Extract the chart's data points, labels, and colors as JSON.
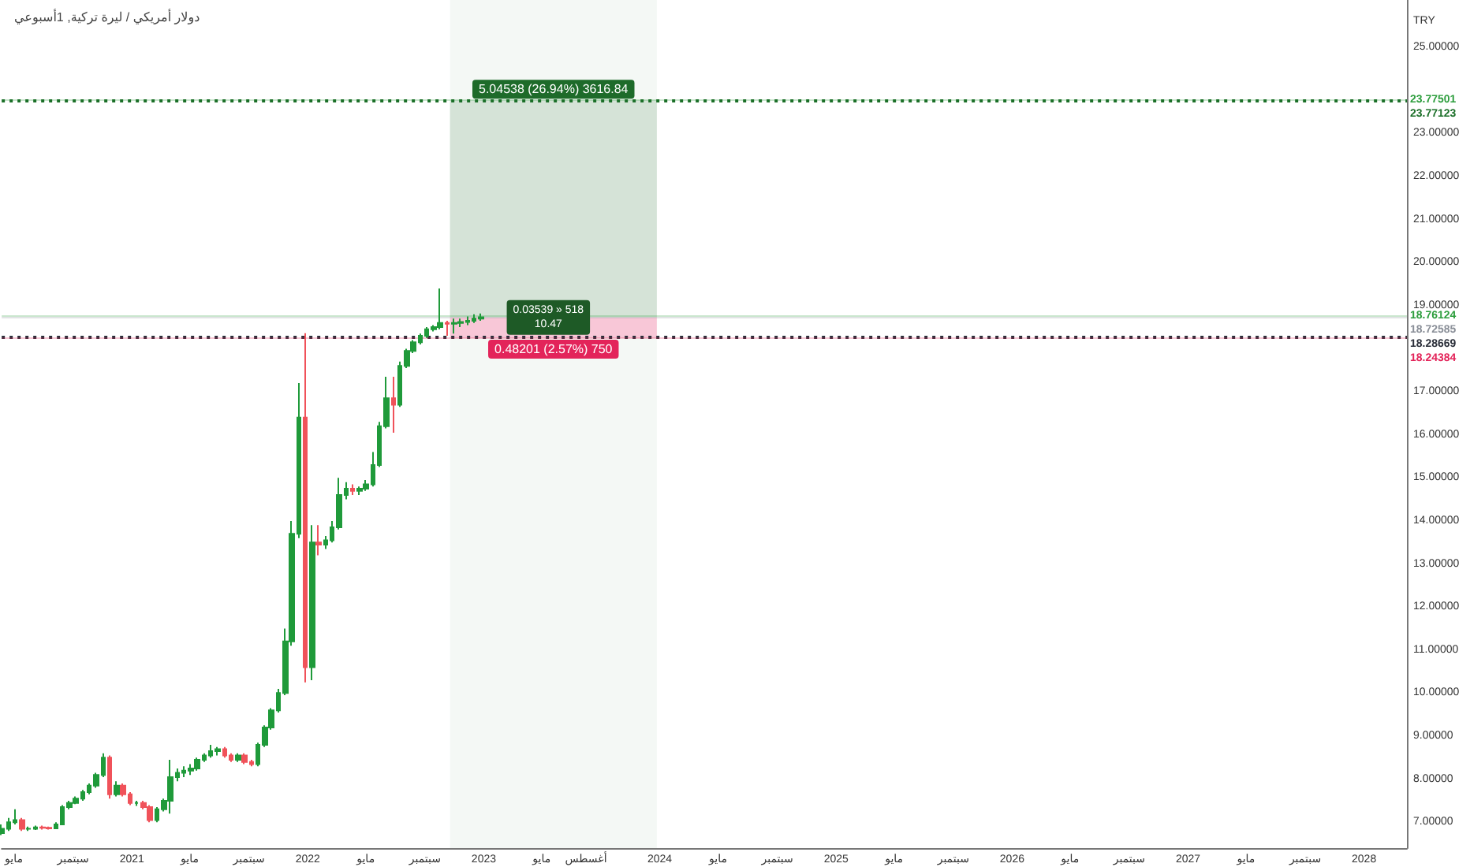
{
  "chart_data": {
    "type": "candlestick",
    "title": "دولار أمريكي / ليرة تركية, 1أسبوعي",
    "ylabel": "TRY",
    "x": [
      "2020-04-06",
      "2020-04-20",
      "2020-05-04",
      "2020-05-18",
      "2020-06-01",
      "2020-06-15",
      "2020-06-29",
      "2020-07-13",
      "2020-07-27",
      "2020-08-10",
      "2020-08-24",
      "2020-09-07",
      "2020-09-21",
      "2020-10-05",
      "2020-10-19",
      "2020-11-02",
      "2020-11-16",
      "2020-11-30",
      "2020-12-14",
      "2020-12-28",
      "2021-01-11",
      "2021-01-25",
      "2021-02-08",
      "2021-02-22",
      "2021-03-08",
      "2021-03-22",
      "2021-04-05",
      "2021-04-19",
      "2021-05-03",
      "2021-05-17",
      "2021-05-31",
      "2021-06-14",
      "2021-06-28",
      "2021-07-12",
      "2021-07-26",
      "2021-08-09",
      "2021-08-23",
      "2021-09-06",
      "2021-09-20",
      "2021-10-04",
      "2021-10-18",
      "2021-11-01",
      "2021-11-15",
      "2021-11-29",
      "2021-12-13",
      "2021-12-27",
      "2022-01-10",
      "2022-01-24",
      "2022-02-07",
      "2022-02-21",
      "2022-03-07",
      "2022-03-21",
      "2022-04-04",
      "2022-04-18",
      "2022-05-02",
      "2022-05-16",
      "2022-05-30",
      "2022-06-13",
      "2022-06-27",
      "2022-07-11",
      "2022-07-25",
      "2022-08-08",
      "2022-08-22",
      "2022-09-05",
      "2022-09-19",
      "2022-10-03",
      "2022-10-17",
      "2022-10-31",
      "2022-11-14",
      "2022-11-28",
      "2022-12-12",
      "2022-12-26"
    ],
    "ohlc": [
      [
        6.75,
        6.95,
        6.7,
        6.85
      ],
      [
        6.85,
        7.1,
        6.8,
        7.0
      ],
      [
        7.0,
        7.3,
        6.95,
        7.05
      ],
      [
        7.05,
        7.1,
        6.8,
        6.85
      ],
      [
        6.85,
        6.9,
        6.8,
        6.85
      ],
      [
        6.85,
        6.92,
        6.82,
        6.88
      ],
      [
        6.88,
        6.92,
        6.83,
        6.87
      ],
      [
        6.87,
        6.9,
        6.83,
        6.86
      ],
      [
        6.86,
        7.0,
        6.84,
        6.95
      ],
      [
        6.95,
        7.4,
        6.93,
        7.35
      ],
      [
        7.35,
        7.5,
        7.3,
        7.45
      ],
      [
        7.45,
        7.6,
        7.42,
        7.55
      ],
      [
        7.55,
        7.75,
        7.5,
        7.7
      ],
      [
        7.7,
        7.9,
        7.65,
        7.85
      ],
      [
        7.85,
        8.15,
        7.8,
        8.1
      ],
      [
        8.1,
        8.6,
        8.05,
        8.5
      ],
      [
        8.5,
        8.55,
        7.55,
        7.65
      ],
      [
        7.65,
        7.95,
        7.6,
        7.85
      ],
      [
        7.85,
        7.9,
        7.6,
        7.65
      ],
      [
        7.65,
        7.7,
        7.4,
        7.45
      ],
      [
        7.45,
        7.5,
        7.38,
        7.45
      ],
      [
        7.45,
        7.5,
        7.3,
        7.35
      ],
      [
        7.35,
        7.4,
        7.0,
        7.05
      ],
      [
        7.05,
        7.35,
        7.0,
        7.3
      ],
      [
        7.3,
        7.55,
        7.25,
        7.5
      ],
      [
        7.5,
        8.45,
        7.2,
        8.05
      ],
      [
        8.05,
        8.25,
        7.95,
        8.15
      ],
      [
        8.15,
        8.3,
        8.05,
        8.2
      ],
      [
        8.2,
        8.35,
        8.1,
        8.25
      ],
      [
        8.25,
        8.5,
        8.2,
        8.45
      ],
      [
        8.45,
        8.6,
        8.4,
        8.55
      ],
      [
        8.55,
        8.8,
        8.5,
        8.65
      ],
      [
        8.65,
        8.75,
        8.55,
        8.7
      ],
      [
        8.7,
        8.75,
        8.5,
        8.55
      ],
      [
        8.55,
        8.6,
        8.4,
        8.45
      ],
      [
        8.45,
        8.6,
        8.4,
        8.55
      ],
      [
        8.55,
        8.6,
        8.35,
        8.4
      ],
      [
        8.4,
        8.45,
        8.3,
        8.35
      ],
      [
        8.35,
        8.85,
        8.3,
        8.8
      ],
      [
        8.8,
        9.25,
        8.75,
        9.2
      ],
      [
        9.2,
        9.65,
        9.15,
        9.6
      ],
      [
        9.6,
        10.1,
        9.55,
        10.0
      ],
      [
        10.0,
        11.5,
        9.95,
        11.2
      ],
      [
        11.2,
        14.0,
        11.1,
        13.7
      ],
      [
        13.7,
        17.2,
        13.6,
        16.4
      ],
      [
        16.4,
        18.36,
        10.25,
        10.6
      ],
      [
        10.6,
        13.9,
        10.3,
        13.5
      ],
      [
        13.5,
        13.9,
        13.2,
        13.45
      ],
      [
        13.45,
        13.65,
        13.35,
        13.55
      ],
      [
        13.55,
        14.0,
        13.5,
        13.85
      ],
      [
        13.85,
        15.0,
        13.8,
        14.6
      ],
      [
        14.6,
        14.9,
        14.5,
        14.75
      ],
      [
        14.75,
        14.85,
        14.6,
        14.7
      ],
      [
        14.7,
        14.8,
        14.6,
        14.75
      ],
      [
        14.75,
        14.95,
        14.7,
        14.85
      ],
      [
        14.85,
        15.6,
        14.8,
        15.3
      ],
      [
        15.3,
        16.3,
        15.25,
        16.2
      ],
      [
        16.2,
        17.35,
        16.15,
        16.85
      ],
      [
        16.85,
        17.35,
        16.05,
        16.7
      ],
      [
        16.7,
        17.7,
        16.65,
        17.6
      ],
      [
        17.6,
        18.0,
        17.55,
        17.95
      ],
      [
        17.95,
        18.2,
        17.9,
        18.15
      ],
      [
        18.15,
        18.35,
        18.1,
        18.3
      ],
      [
        18.3,
        18.5,
        18.25,
        18.45
      ],
      [
        18.45,
        18.55,
        18.4,
        18.5
      ],
      [
        18.5,
        19.4,
        18.45,
        18.6
      ],
      [
        18.6,
        18.65,
        18.3,
        18.58
      ],
      [
        18.58,
        18.7,
        18.35,
        18.6
      ],
      [
        18.6,
        18.7,
        18.5,
        18.62
      ],
      [
        18.62,
        18.75,
        18.55,
        18.65
      ],
      [
        18.65,
        18.8,
        18.6,
        18.7
      ],
      [
        18.7,
        18.82,
        18.65,
        18.73
      ]
    ],
    "xlim": [
      "2020-04-06",
      "2028-03-30"
    ],
    "xticks": [
      {
        "value": "2020-05-01",
        "label": "مايو"
      },
      {
        "value": "2020-09-01",
        "label": "سبتمبر"
      },
      {
        "value": "2021-01-01",
        "label": "2021"
      },
      {
        "value": "2021-05-01",
        "label": "مايو"
      },
      {
        "value": "2021-09-01",
        "label": "سبتمبر"
      },
      {
        "value": "2022-01-01",
        "label": "2022"
      },
      {
        "value": "2022-05-01",
        "label": "مايو"
      },
      {
        "value": "2022-09-01",
        "label": "سبتمبر"
      },
      {
        "value": "2023-01-01",
        "label": "2023"
      },
      {
        "value": "2023-05-01",
        "label": "مايو"
      },
      {
        "value": "2023-08-01",
        "label": "أغسطس"
      },
      {
        "value": "2024-01-01",
        "label": "2024"
      },
      {
        "value": "2024-05-01",
        "label": "مايو"
      },
      {
        "value": "2024-09-01",
        "label": "سبتمبر"
      },
      {
        "value": "2025-01-01",
        "label": "2025"
      },
      {
        "value": "2025-05-01",
        "label": "مايو"
      },
      {
        "value": "2025-09-01",
        "label": "سبتمبر"
      },
      {
        "value": "2026-01-01",
        "label": "2026"
      },
      {
        "value": "2026-05-01",
        "label": "مايو"
      },
      {
        "value": "2026-09-01",
        "label": "سبتمبر"
      },
      {
        "value": "2027-01-01",
        "label": "2027"
      },
      {
        "value": "2027-05-01",
        "label": "مايو"
      },
      {
        "value": "2027-09-01",
        "label": "سبتمبر"
      },
      {
        "value": "2028-01-01",
        "label": "2028"
      }
    ],
    "ylim": [
      6.4,
      26.1
    ],
    "yticks": [
      {
        "value": 7,
        "label": "7.00000"
      },
      {
        "value": 8,
        "label": "8.00000"
      },
      {
        "value": 9,
        "label": "9.00000"
      },
      {
        "value": 10,
        "label": "10.00000"
      },
      {
        "value": 11,
        "label": "11.00000"
      },
      {
        "value": 12,
        "label": "12.00000"
      },
      {
        "value": 13,
        "label": "13.00000"
      },
      {
        "value": 14,
        "label": "14.00000"
      },
      {
        "value": 15,
        "label": "15.00000"
      },
      {
        "value": 16,
        "label": "16.00000"
      },
      {
        "value": 17,
        "label": "17.00000"
      },
      {
        "value": 19,
        "label": "19.00000"
      },
      {
        "value": 20,
        "label": "20.00000"
      },
      {
        "value": 21,
        "label": "21.00000"
      },
      {
        "value": 22,
        "label": "22.00000"
      },
      {
        "value": 23,
        "label": "23.00000"
      },
      {
        "value": 25,
        "label": "25.00000"
      }
    ],
    "ref_lines": [
      {
        "axis": "y",
        "value": 23.77501,
        "label": "23.77501",
        "color": "#2e9e3e",
        "line_style": "solid"
      },
      {
        "axis": "y",
        "value": 23.77123,
        "label": "23.77123",
        "color": "#1b6f28",
        "line_style": "dotted"
      },
      {
        "axis": "y",
        "value": 18.76124,
        "label": "18.76124",
        "color": "#2e9e3e",
        "line_style": "solid"
      },
      {
        "axis": "y",
        "value": 18.72585,
        "label": "18.72585",
        "color": "#8a8f98",
        "line_style": "solid"
      },
      {
        "axis": "y",
        "value": 18.28669,
        "label": "18.28669",
        "color": "#2a2e39",
        "line_style": "dotted"
      },
      {
        "axis": "y",
        "value": 18.24384,
        "label": "18.24384",
        "color": "#e3245a",
        "line_style": "solid"
      }
    ],
    "bands": [
      {
        "axis": "y",
        "from": 18.72585,
        "to": 23.77123,
        "label": "5.04538 (26.94%) 3616.84",
        "color": "#d5e3d7"
      },
      {
        "axis": "y",
        "from": 18.24384,
        "to": 18.72585,
        "label": "0.48201 (2.57%) 750",
        "color": "#f8c7d7"
      },
      {
        "axis": "x",
        "from": "2022-10-23",
        "to": "2023-12-26",
        "color": "#f4f8f5"
      }
    ],
    "annotations": [
      {
        "text": "0.03539 » 518\n10.47",
        "x": "2023-05-15",
        "y": 18.72585
      }
    ],
    "grid": false,
    "legend": false
  }
}
